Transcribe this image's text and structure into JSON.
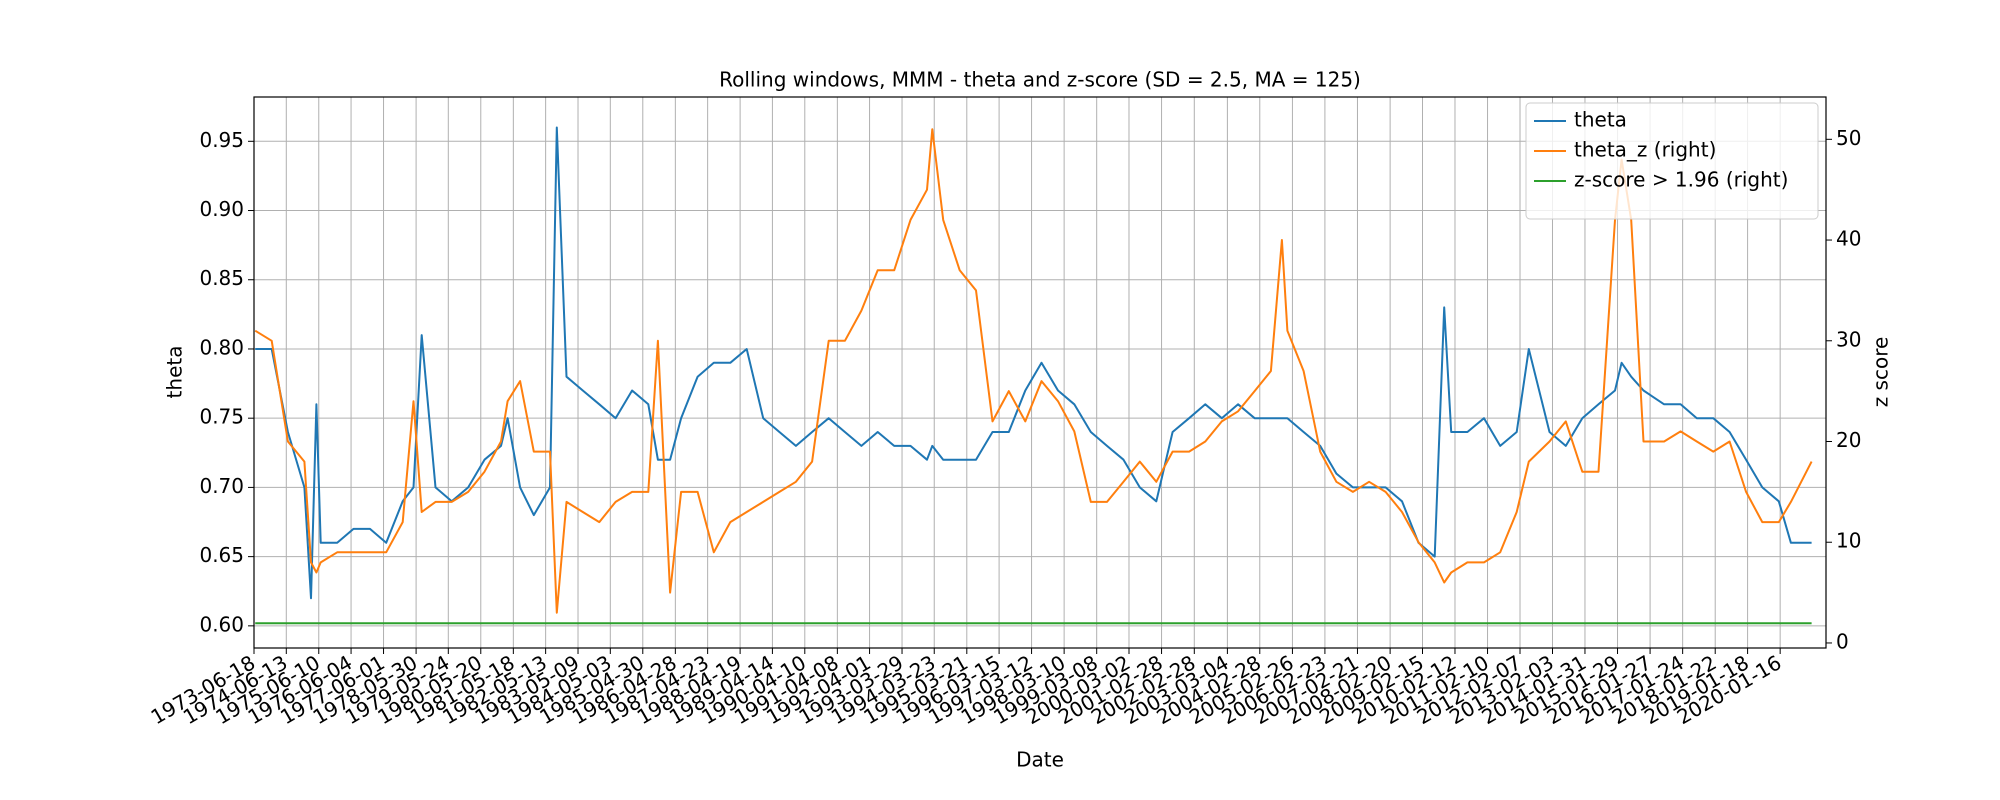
{
  "chart_data": {
    "type": "line",
    "title": "Rolling windows, MMM - theta and z-score (SD = 2.5, MA = 125)",
    "xlabel": "Date",
    "ylabel": "theta",
    "y2label": "z score",
    "x": [
      "1973-07-01",
      "1974-01-01",
      "1974-07-01",
      "1975-01-01",
      "1975-03-15",
      "1975-05-15",
      "1975-07-01",
      "1976-01-01",
      "1976-07-01",
      "1977-01-01",
      "1977-07-01",
      "1978-01-01",
      "1978-05-01",
      "1978-08-01",
      "1979-01-01",
      "1979-07-01",
      "1980-01-01",
      "1980-07-01",
      "1981-01-01",
      "1981-03-15",
      "1981-08-01",
      "1982-01-01",
      "1982-07-01",
      "1982-09-15",
      "1983-01-01",
      "1983-07-01",
      "1984-01-01",
      "1984-07-01",
      "1985-01-01",
      "1985-07-01",
      "1985-10-15",
      "1986-03-01",
      "1986-07-01",
      "1987-01-01",
      "1987-07-01",
      "1988-01-01",
      "1988-07-01",
      "1989-01-01",
      "1989-07-01",
      "1990-01-01",
      "1990-07-01",
      "1991-01-01",
      "1991-07-01",
      "1992-01-01",
      "1992-07-01",
      "1993-01-01",
      "1993-07-01",
      "1994-01-01",
      "1994-03-01",
      "1994-07-01",
      "1995-01-01",
      "1995-07-01",
      "1996-01-01",
      "1996-07-01",
      "1997-01-01",
      "1997-07-01",
      "1998-01-01",
      "1998-07-01",
      "1999-01-01",
      "1999-07-01",
      "2000-01-01",
      "2000-07-01",
      "2001-01-01",
      "2001-07-01",
      "2002-01-01",
      "2002-07-01",
      "2003-01-01",
      "2003-07-01",
      "2004-01-01",
      "2004-07-01",
      "2004-11-01",
      "2005-01-01",
      "2005-07-01",
      "2006-01-01",
      "2006-07-01",
      "2007-01-01",
      "2007-07-01",
      "2008-01-01",
      "2008-07-01",
      "2009-01-01",
      "2009-07-01",
      "2009-10-15",
      "2010-01-01",
      "2010-07-01",
      "2011-01-01",
      "2011-07-01",
      "2012-01-01",
      "2012-05-15",
      "2013-01-01",
      "2013-07-01",
      "2014-01-01",
      "2014-07-01",
      "2015-01-01",
      "2015-03-15",
      "2015-07-01",
      "2015-11-15",
      "2016-07-01",
      "2017-01-01",
      "2017-07-01",
      "2018-01-01",
      "2018-07-01",
      "2019-01-01",
      "2019-07-01",
      "2020-01-01",
      "2020-05-15",
      "2021-01-01"
    ],
    "series": [
      {
        "name": "theta",
        "color": "#1f77b4",
        "axis": "y",
        "values": [
          0.8,
          0.8,
          0.74,
          0.7,
          0.62,
          0.76,
          0.66,
          0.66,
          0.67,
          0.67,
          0.66,
          0.69,
          0.7,
          0.81,
          0.7,
          0.69,
          0.7,
          0.72,
          0.73,
          0.75,
          0.7,
          0.68,
          0.7,
          0.96,
          0.78,
          0.77,
          0.76,
          0.75,
          0.77,
          0.76,
          0.72,
          0.72,
          0.75,
          0.78,
          0.79,
          0.79,
          0.8,
          0.75,
          0.74,
          0.73,
          0.74,
          0.75,
          0.74,
          0.73,
          0.74,
          0.73,
          0.73,
          0.72,
          0.73,
          0.72,
          0.72,
          0.72,
          0.74,
          0.74,
          0.77,
          0.79,
          0.77,
          0.76,
          0.74,
          0.73,
          0.72,
          0.7,
          0.69,
          0.74,
          0.75,
          0.76,
          0.75,
          0.76,
          0.75,
          0.75,
          0.75,
          0.75,
          0.74,
          0.73,
          0.71,
          0.7,
          0.7,
          0.7,
          0.69,
          0.66,
          0.65,
          0.83,
          0.74,
          0.74,
          0.75,
          0.73,
          0.74,
          0.8,
          0.74,
          0.73,
          0.75,
          0.76,
          0.77,
          0.79,
          0.78,
          0.77,
          0.76,
          0.76,
          0.75,
          0.75,
          0.74,
          0.72,
          0.7,
          0.69,
          0.66,
          0.66
        ]
      },
      {
        "name": "theta_z (right)",
        "color": "#ff7f0e",
        "axis": "y2",
        "values": [
          31,
          30,
          20,
          18,
          8,
          7,
          8,
          9,
          9,
          9,
          9,
          12,
          24,
          13,
          14,
          14,
          15,
          17,
          20,
          24,
          26,
          19,
          19,
          3,
          14,
          13,
          12,
          14,
          15,
          15,
          30,
          5,
          15,
          15,
          9,
          12,
          13,
          14,
          15,
          16,
          18,
          30,
          30,
          33,
          37,
          37,
          42,
          45,
          51,
          42,
          37,
          35,
          22,
          25,
          22,
          26,
          24,
          21,
          14,
          14,
          16,
          18,
          16,
          19,
          19,
          20,
          22,
          23,
          25,
          27,
          40,
          31,
          27,
          19,
          16,
          15,
          16,
          15,
          13,
          10,
          8,
          6,
          7,
          8,
          8,
          9,
          13,
          18,
          20,
          22,
          17,
          17,
          42,
          48,
          42,
          20,
          20,
          21,
          20,
          19,
          20,
          15,
          12,
          12,
          14,
          18
        ]
      },
      {
        "name": "z-score > 1.96 (right)",
        "color": "#2ca02c",
        "axis": "y2",
        "values": [
          1.96,
          1.96,
          1.96,
          1.96,
          1.96,
          1.96,
          1.96,
          1.96,
          1.96,
          1.96,
          1.96,
          1.96,
          1.96,
          1.96,
          1.96,
          1.96,
          1.96,
          1.96,
          1.96,
          1.96,
          1.96,
          1.96,
          1.96,
          1.96,
          1.96,
          1.96,
          1.96,
          1.96,
          1.96,
          1.96,
          1.96,
          1.96,
          1.96,
          1.96,
          1.96,
          1.96,
          1.96,
          1.96,
          1.96,
          1.96,
          1.96,
          1.96,
          1.96,
          1.96,
          1.96,
          1.96,
          1.96,
          1.96,
          1.96,
          1.96,
          1.96,
          1.96,
          1.96,
          1.96,
          1.96,
          1.96,
          1.96,
          1.96,
          1.96,
          1.96,
          1.96,
          1.96,
          1.96,
          1.96,
          1.96,
          1.96,
          1.96,
          1.96,
          1.96,
          1.96,
          1.96,
          1.96,
          1.96,
          1.96,
          1.96,
          1.96,
          1.96,
          1.96,
          1.96,
          1.96,
          1.96,
          1.96,
          1.96,
          1.96,
          1.96,
          1.96,
          1.96,
          1.96,
          1.96,
          1.96,
          1.96,
          1.96,
          1.96,
          1.96,
          1.96,
          1.96,
          1.96,
          1.96,
          1.96,
          1.96,
          1.96,
          1.96,
          1.96,
          1.96,
          1.96,
          1.96
        ]
      }
    ],
    "xlim": [
      "1973-06-18",
      "2021-06-10"
    ],
    "xticks": [
      "1973-06-18",
      "1974-06-13",
      "1975-06-10",
      "1976-06-04",
      "1977-06-01",
      "1978-05-30",
      "1979-05-24",
      "1980-05-20",
      "1981-05-18",
      "1982-05-13",
      "1983-05-09",
      "1984-05-03",
      "1985-04-30",
      "1986-04-28",
      "1987-04-23",
      "1988-04-19",
      "1989-04-14",
      "1990-04-10",
      "1991-04-08",
      "1992-04-01",
      "1993-03-29",
      "1994-03-23",
      "1995-03-21",
      "1996-03-15",
      "1997-03-12",
      "1998-03-10",
      "1999-03-08",
      "2000-03-02",
      "2001-02-28",
      "2002-02-28",
      "2003-03-04",
      "2004-02-28",
      "2005-02-26",
      "2006-02-23",
      "2007-02-21",
      "2008-02-20",
      "2009-02-15",
      "2010-02-12",
      "2011-02-10",
      "2012-02-07",
      "2013-02-03",
      "2014-01-31",
      "2015-01-29",
      "2016-01-27",
      "2017-01-24",
      "2018-01-22",
      "2019-01-18",
      "2020-01-16"
    ],
    "ylim": [
      0.584,
      0.982
    ],
    "yticks": [
      {
        "value": 0.6,
        "label": "0.60"
      },
      0.65,
      {
        "value": 0.7,
        "label": "0.70"
      },
      0.75,
      {
        "value": 0.8,
        "label": "0.80"
      },
      0.85,
      {
        "value": 0.9,
        "label": "0.90"
      },
      0.95
    ],
    "y2lim": [
      -0.5,
      54.2
    ],
    "y2ticks": [
      0,
      10,
      20,
      30,
      40,
      50
    ],
    "grid": true,
    "legend": "upper right"
  }
}
